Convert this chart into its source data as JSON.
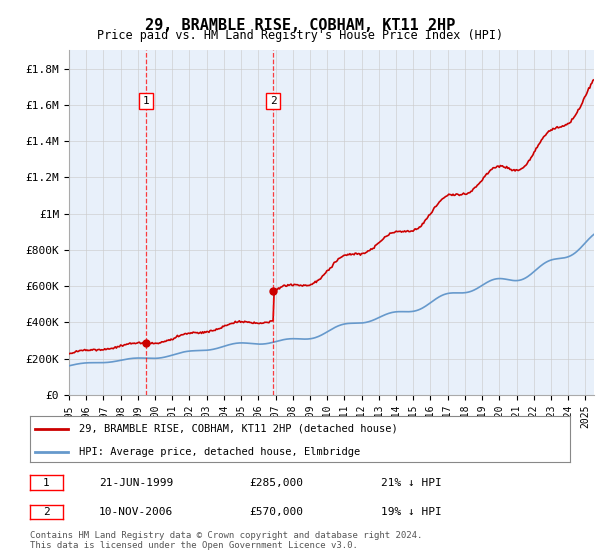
{
  "title": "29, BRAMBLE RISE, COBHAM, KT11 2HP",
  "subtitle": "Price paid vs. HM Land Registry's House Price Index (HPI)",
  "ylabel_ticks": [
    "£0",
    "£200K",
    "£400K",
    "£600K",
    "£800K",
    "£1M",
    "£1.2M",
    "£1.4M",
    "£1.6M",
    "£1.8M"
  ],
  "ytick_values": [
    0,
    200000,
    400000,
    600000,
    800000,
    1000000,
    1200000,
    1400000,
    1600000,
    1800000
  ],
  "ylim_min": 0,
  "ylim_max": 1900000,
  "xlim_start": 1995.0,
  "xlim_end": 2025.5,
  "hpi_color": "#6699cc",
  "price_color": "#cc0000",
  "marker1_date": 1999.47,
  "marker1_price": 285000,
  "marker2_date": 2006.86,
  "marker2_price": 570000,
  "transaction1": {
    "label": "1",
    "date": "21-JUN-1999",
    "price": "£285,000",
    "note": "21% ↓ HPI"
  },
  "transaction2": {
    "label": "2",
    "date": "10-NOV-2006",
    "price": "£570,000",
    "note": "19% ↓ HPI"
  },
  "legend_line1": "29, BRAMBLE RISE, COBHAM, KT11 2HP (detached house)",
  "legend_line2": "HPI: Average price, detached house, Elmbridge",
  "footer": "Contains HM Land Registry data © Crown copyright and database right 2024.\nThis data is licensed under the Open Government Licence v3.0.",
  "plot_bg": "#e8f0fa",
  "grid_color": "#cccccc"
}
